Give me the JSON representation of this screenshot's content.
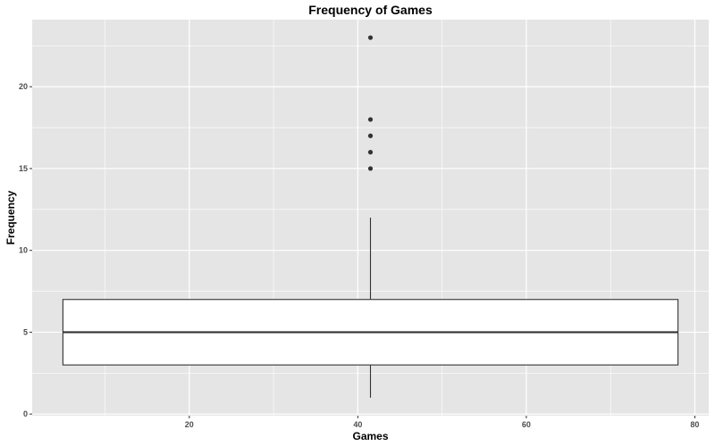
{
  "chart_data": {
    "type": "boxplot",
    "title": "Frequency of Games",
    "xlabel": "Games",
    "ylabel": "Frequency",
    "xlim": [
      1.35,
      81.65
    ],
    "ylim": [
      -0.1,
      24.1
    ],
    "x_ticks": [
      20,
      40,
      60,
      80
    ],
    "y_ticks": [
      0,
      5,
      10,
      15,
      20
    ],
    "x_tick_labels": [
      "20",
      "40",
      "60",
      "80"
    ],
    "y_tick_labels": [
      "0",
      "5",
      "10",
      "15",
      "20"
    ],
    "grid": true,
    "legend": "none",
    "box": {
      "x_center": 41.5,
      "x_range": [
        5,
        78
      ],
      "min": 1,
      "q1": 3,
      "median": 5,
      "q3": 7,
      "max": 12,
      "outliers": [
        15,
        16,
        17,
        18,
        23
      ]
    },
    "colors": {
      "panel": "#e5e5e5",
      "grid": "#ffffff",
      "box_fill": "#ffffff",
      "line": "#333333"
    }
  }
}
